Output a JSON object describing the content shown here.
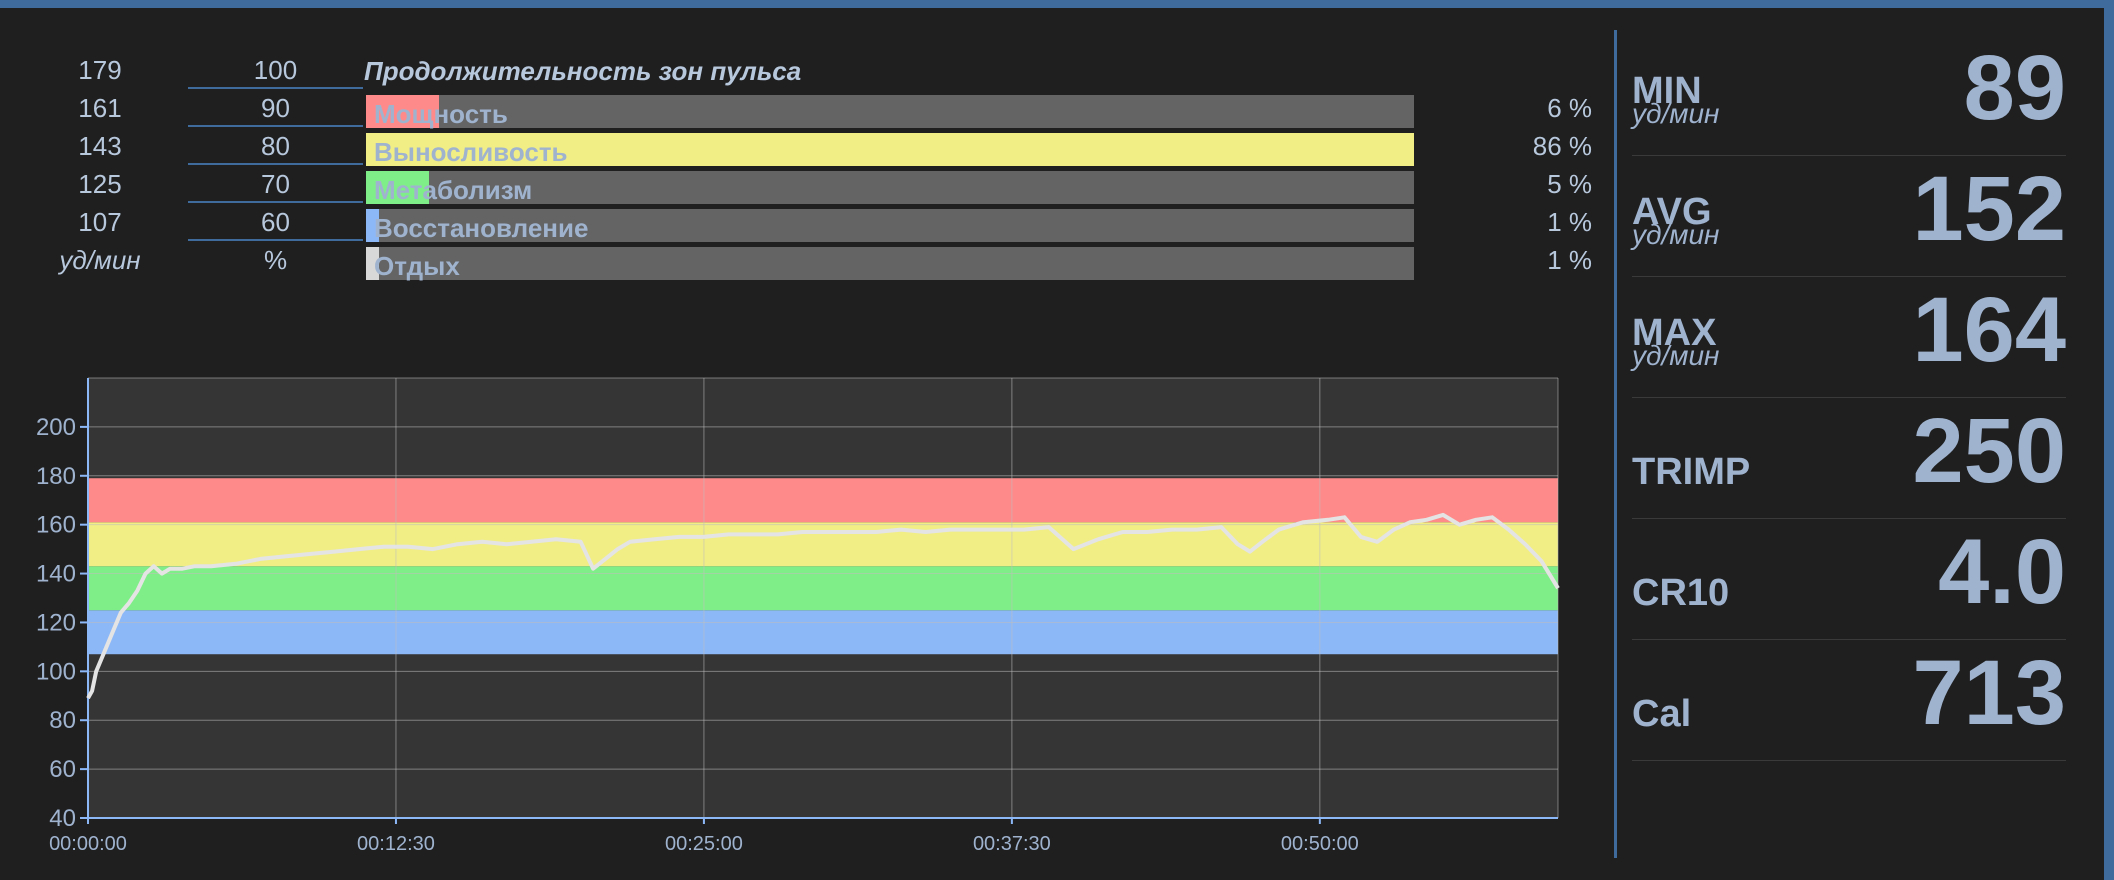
{
  "zones_title": "Продолжительность зон пульса",
  "zones": [
    {
      "bpm": "179",
      "pct": "100",
      "name": "",
      "percent": "",
      "fill": 0,
      "color": ""
    },
    {
      "bpm": "161",
      "pct": "90",
      "name": "Мощность",
      "percent": "6 %",
      "fill": 0.07,
      "color": "#ff8a8a"
    },
    {
      "bpm": "143",
      "pct": "80",
      "name": "Выносливость",
      "percent": "86 %",
      "fill": 1.0,
      "color": "#f1ee86"
    },
    {
      "bpm": "125",
      "pct": "70",
      "name": "Метаболизм",
      "percent": "5 %",
      "fill": 0.06,
      "color": "#80ee88"
    },
    {
      "bpm": "107",
      "pct": "60",
      "name": "Восстановление",
      "percent": "1 %",
      "fill": 0.012,
      "color": "#8db8f8"
    },
    {
      "bpm": "уд/мин",
      "pct": "%",
      "name": "Отдых",
      "percent": "1 %",
      "fill": 0.012,
      "color": "#d8d8d8"
    }
  ],
  "stats": [
    {
      "label": "MIN",
      "unit": "уд/мин",
      "value": "89"
    },
    {
      "label": "AVG",
      "unit": "уд/мин",
      "value": "152"
    },
    {
      "label": "MAX",
      "unit": "уд/мин",
      "value": "164"
    },
    {
      "label": "TRIMP",
      "unit": "",
      "value": "250"
    },
    {
      "label": "CR10",
      "unit": "",
      "value": "4.0"
    },
    {
      "label": "Cal",
      "unit": "",
      "value": "713"
    }
  ],
  "colors": {
    "accent": "#3f6a9c",
    "zone_red": "#ff8a8a",
    "zone_yellow": "#f1ee86",
    "zone_green": "#80ee88",
    "zone_blue": "#8db8f8"
  },
  "chart_data": {
    "type": "line",
    "title": "",
    "xlabel": "",
    "ylabel": "",
    "ylim": [
      40,
      220
    ],
    "yticks": [
      "40",
      "60",
      "80",
      "100",
      "120",
      "140",
      "160",
      "180",
      "200"
    ],
    "xlim_seconds": [
      0,
      3580
    ],
    "xticks": [
      "00:00:00",
      "00:12:30",
      "00:25:00",
      "00:37:30",
      "00:50:00"
    ],
    "grid": true,
    "bands": [
      {
        "from": 107,
        "to": 125,
        "color": "#8db8f8"
      },
      {
        "from": 125,
        "to": 143,
        "color": "#80ee88"
      },
      {
        "from": 143,
        "to": 161,
        "color": "#f1ee86"
      },
      {
        "from": 161,
        "to": 179,
        "color": "#ff8a8a"
      }
    ],
    "series": [
      {
        "color": "#e4e4e4",
        "x": [
          0,
          10,
          20,
          40,
          60,
          80,
          100,
          120,
          140,
          160,
          180,
          200,
          230,
          260,
          300,
          360,
          420,
          480,
          540,
          600,
          660,
          720,
          780,
          840,
          900,
          960,
          1020,
          1080,
          1140,
          1200,
          1230,
          1260,
          1290,
          1320,
          1380,
          1440,
          1500,
          1560,
          1620,
          1680,
          1740,
          1800,
          1860,
          1920,
          1980,
          2040,
          2100,
          2160,
          2220,
          2280,
          2340,
          2400,
          2460,
          2520,
          2580,
          2640,
          2700,
          2760,
          2800,
          2830,
          2860,
          2900,
          2960,
          3020,
          3060,
          3100,
          3140,
          3180,
          3220,
          3260,
          3300,
          3340,
          3380,
          3420,
          3460,
          3500,
          3540,
          3580
        ],
        "y": [
          89,
          92,
          100,
          108,
          116,
          124,
          128,
          133,
          140,
          143,
          140,
          142,
          142,
          143,
          143,
          144,
          146,
          147,
          148,
          149,
          150,
          151,
          151,
          150,
          152,
          153,
          152,
          153,
          154,
          153,
          142,
          146,
          150,
          153,
          154,
          155,
          155,
          156,
          156,
          156,
          157,
          157,
          157,
          157,
          158,
          157,
          158,
          158,
          158,
          158,
          159,
          150,
          154,
          157,
          157,
          158,
          158,
          159,
          152,
          149,
          153,
          158,
          161,
          162,
          163,
          155,
          153,
          158,
          161,
          162,
          164,
          160,
          162,
          163,
          158,
          152,
          145,
          134
        ]
      }
    ]
  }
}
